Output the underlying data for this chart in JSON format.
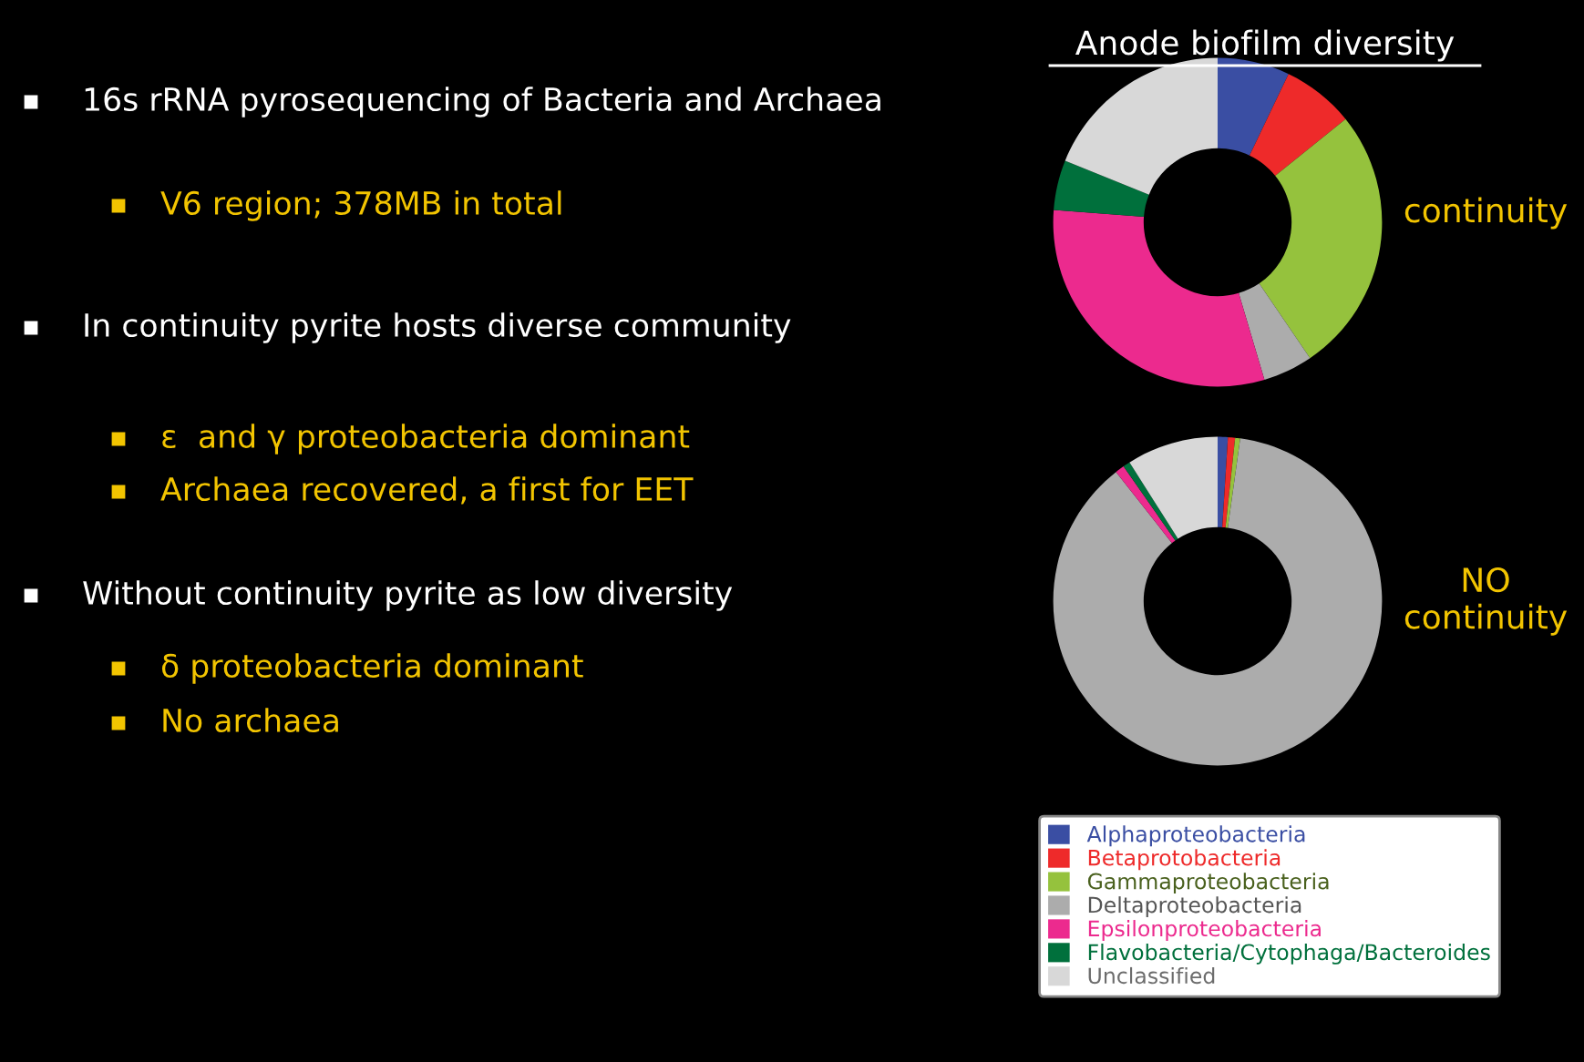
{
  "chart_data": [
    {
      "type": "donut",
      "title": "Anode biofilm diversity",
      "subtitle": "continuity",
      "categories": [
        "Alphaproteobacteria",
        "Betaprotobacteria",
        "Gammaproteobacteria",
        "Deltaproteobacteria",
        "Epsilonproteobacteria",
        "Flavobacteria/Cytophaga/Bacteroides",
        "Unclassified"
      ],
      "values": [
        7.1,
        7.1,
        26.3,
        4.9,
        30.8,
        4.9,
        18.9
      ],
      "colors": [
        "#3a4ea3",
        "#ee2a2a",
        "#95c23d",
        "#acacac",
        "#ec2a8e",
        "#00703c",
        "#d8d8d8"
      ],
      "annotations": [
        "16s rRNA pyrosequencing of Bacteria and Archaea",
        "V6 region; 378MB in total",
        "In continuity pyrite hosts diverse community",
        "ε  and γ proteobacteria dominant",
        "Archaea recovered, a first for EET",
        "Without continuity pyrite as low diversity",
        "δ proteobacteria dominant",
        "No archaea"
      ],
      "legend": "bottom"
    },
    {
      "type": "donut",
      "subtitle": "NO\ncontinuity",
      "categories": [
        null,
        null,
        null,
        null,
        null,
        null,
        null
      ],
      "values": [
        1,
        0.7,
        0.5,
        87.2,
        0.9,
        0.7,
        9
      ],
      "colors": [
        "#3a4ea3",
        "#ee2a2a",
        "#95c23d",
        "#acacac",
        "#ec2a8e",
        "#00703c",
        "#d8d8d8"
      ]
    }
  ]
}
